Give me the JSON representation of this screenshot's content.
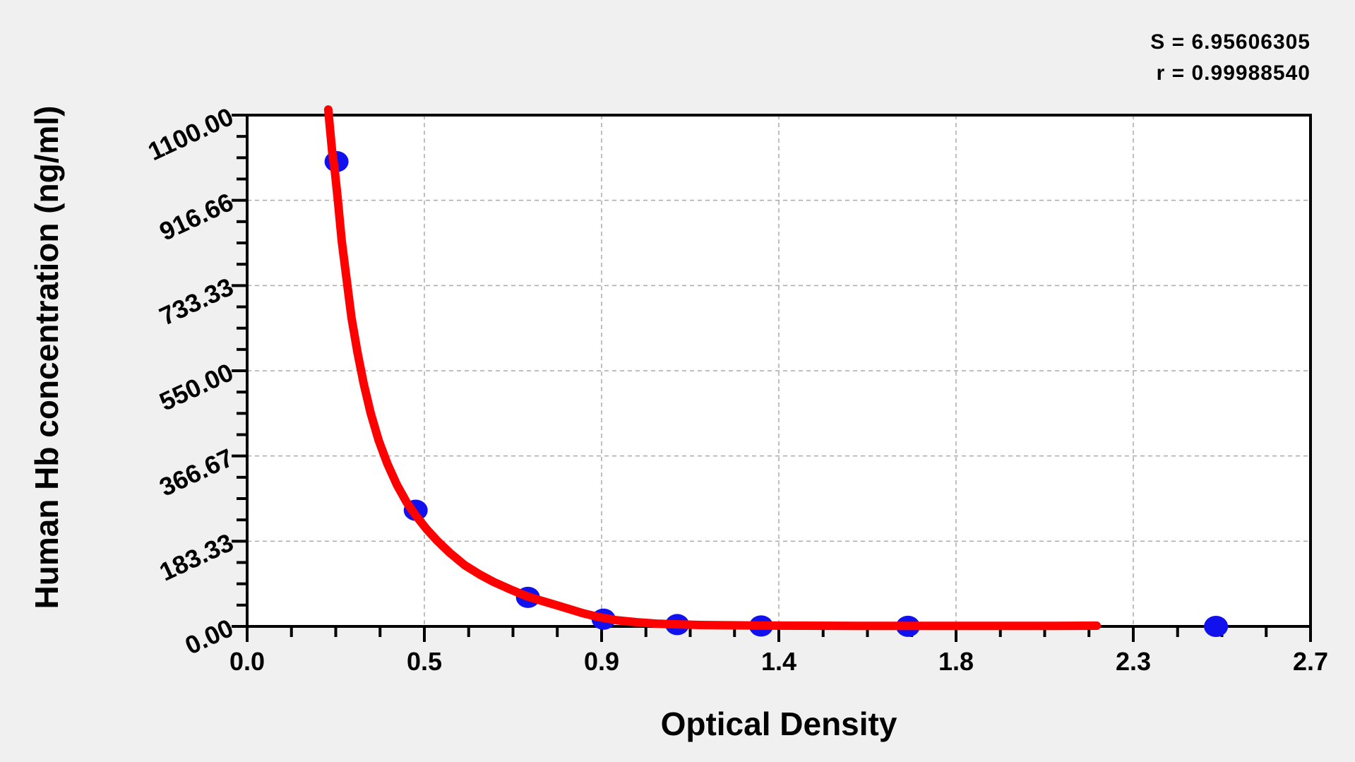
{
  "chart_data": {
    "type": "scatter",
    "title": "",
    "xlabel": "Optical Density",
    "ylabel": "Human Hb concentration (ng/ml)",
    "xlim": [
      0,
      2.7
    ],
    "ylim": [
      0,
      1100
    ],
    "grid": true,
    "x_minor_divisions": 4,
    "y_minor_divisions": 4,
    "x_ticks": [
      {
        "value": 0.0,
        "label": "0.0"
      },
      {
        "value": 0.45,
        "label": "0.5"
      },
      {
        "value": 0.9,
        "label": "0.9"
      },
      {
        "value": 1.35,
        "label": "1.4"
      },
      {
        "value": 1.8,
        "label": "1.8"
      },
      {
        "value": 2.25,
        "label": "2.3"
      },
      {
        "value": 2.7,
        "label": "2.7"
      }
    ],
    "y_ticks": [
      {
        "value": 0,
        "label": "0.00"
      },
      {
        "value": 183.33,
        "label": "183.33"
      },
      {
        "value": 366.67,
        "label": "366.67"
      },
      {
        "value": 550.0,
        "label": "550.00"
      },
      {
        "value": 733.33,
        "label": "733.33"
      },
      {
        "value": 916.66,
        "label": "916.66"
      },
      {
        "value": 1100.0,
        "label": "1100.00"
      }
    ],
    "annotations": {
      "s_label": "S = 6.95606305",
      "r_label": "r = 0.99988540"
    },
    "points": [
      {
        "od": 0.227,
        "concentration": 1000
      },
      {
        "od": 0.428,
        "concentration": 250
      },
      {
        "od": 0.713,
        "concentration": 62.5
      },
      {
        "od": 0.905,
        "concentration": 15.63
      },
      {
        "od": 1.092,
        "concentration": 3.91
      },
      {
        "od": 1.305,
        "concentration": 0.98
      },
      {
        "od": 1.678,
        "concentration": 0.24
      },
      {
        "od": 2.46,
        "concentration": 0
      }
    ],
    "curve": [
      [
        0.206,
        1112
      ],
      [
        0.21,
        1075
      ],
      [
        0.216,
        1020
      ],
      [
        0.222,
        985
      ],
      [
        0.23,
        920
      ],
      [
        0.24,
        830
      ],
      [
        0.252,
        750
      ],
      [
        0.265,
        664
      ],
      [
        0.28,
        590
      ],
      [
        0.296,
        522
      ],
      [
        0.314,
        458
      ],
      [
        0.334,
        400
      ],
      [
        0.356,
        350
      ],
      [
        0.38,
        305
      ],
      [
        0.405,
        267
      ],
      [
        0.428,
        239
      ],
      [
        0.455,
        210
      ],
      [
        0.483,
        184
      ],
      [
        0.515,
        158
      ],
      [
        0.552,
        132
      ],
      [
        0.59,
        112
      ],
      [
        0.625,
        96
      ],
      [
        0.67,
        79
      ],
      [
        0.713,
        64
      ],
      [
        0.76,
        52
      ],
      [
        0.8,
        42
      ],
      [
        0.85,
        29
      ],
      [
        0.893,
        20
      ],
      [
        0.94,
        13
      ],
      [
        0.99,
        9
      ],
      [
        1.04,
        6
      ],
      [
        1.09,
        4.5
      ],
      [
        1.15,
        3
      ],
      [
        1.22,
        2.5
      ],
      [
        1.3,
        2
      ],
      [
        1.4,
        1.5
      ],
      [
        1.55,
        1.2
      ],
      [
        1.7,
        1.2
      ],
      [
        1.9,
        1.2
      ],
      [
        2.05,
        1.2
      ],
      [
        2.157,
        1.5
      ]
    ],
    "colors": {
      "point": "#1111ee",
      "curve": "#ff0000",
      "grid": "#aaaaaa",
      "axis": "#000000",
      "background": "#f0f0f0",
      "plot_background": "#ffffff"
    }
  }
}
